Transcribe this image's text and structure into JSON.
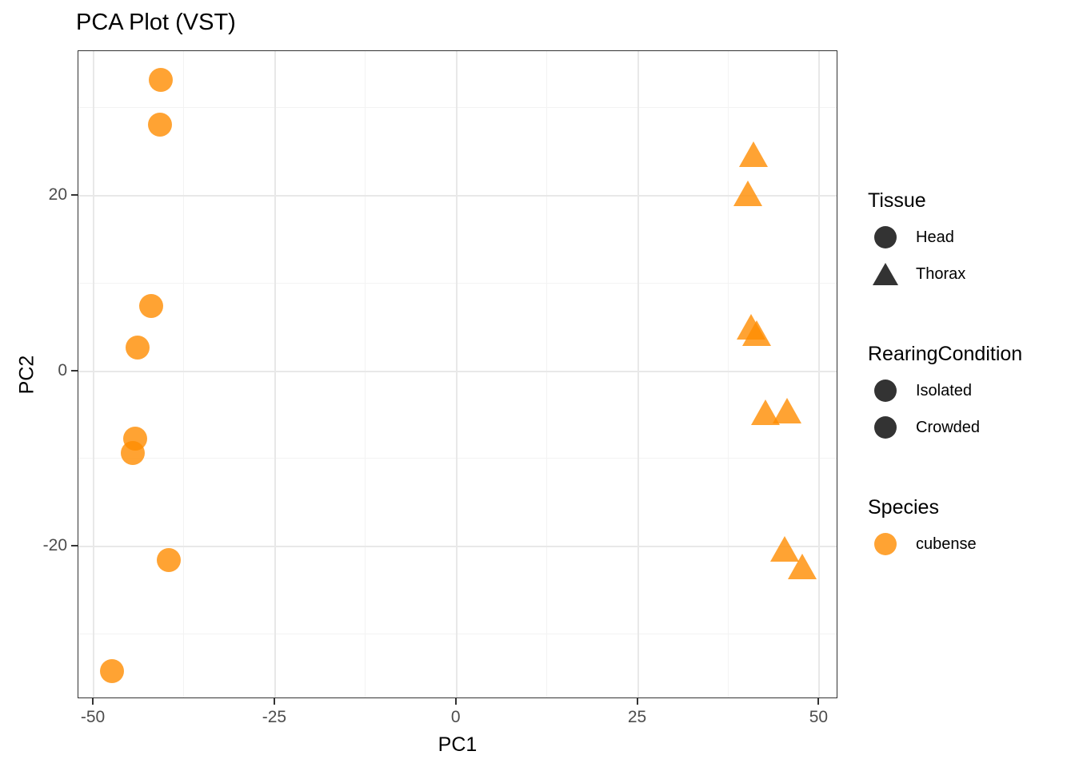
{
  "chart_data": {
    "type": "scatter",
    "title": "PCA Plot (VST)",
    "xlabel": "PC1",
    "ylabel": "PC2",
    "xlim": [
      -52.1,
      52.6
    ],
    "ylim": [
      -37.4,
      36.5
    ],
    "x_ticks": [
      -50,
      -25,
      0,
      25,
      50
    ],
    "y_ticks": [
      -20,
      0,
      20
    ],
    "grid": {
      "major": true,
      "minor": true
    },
    "legend_position": "right",
    "point_style": {
      "color": "#FF8C00",
      "alpha": 0.8
    },
    "series": [
      {
        "name": "Head",
        "marker": "circle",
        "species": "cubense",
        "points": [
          [
            -40.7,
            33.2
          ],
          [
            -40.9,
            28.1
          ],
          [
            -42.1,
            7.4
          ],
          [
            -43.9,
            2.7
          ],
          [
            -44.3,
            -7.7
          ],
          [
            -44.6,
            -9.3
          ],
          [
            -39.6,
            -21.5
          ],
          [
            -47.5,
            -34.2
          ]
        ]
      },
      {
        "name": "Thorax",
        "marker": "triangle",
        "species": "cubense",
        "points": [
          [
            40.9,
            24.7
          ],
          [
            40.1,
            20.3
          ],
          [
            40.6,
            5.1
          ],
          [
            41.4,
            4.3
          ],
          [
            42.6,
            -4.7
          ],
          [
            45.5,
            -4.5
          ],
          [
            45.2,
            -20.3
          ],
          [
            47.6,
            -22.3
          ]
        ]
      }
    ]
  },
  "legend": {
    "groups": [
      {
        "title": "Tissue",
        "items": [
          {
            "label": "Head",
            "marker": "circle",
            "color": "#000000"
          },
          {
            "label": "Thorax",
            "marker": "triangle",
            "color": "#000000"
          }
        ]
      },
      {
        "title": "RearingCondition",
        "items": [
          {
            "label": "Isolated",
            "marker": "circle",
            "color": "#000000"
          },
          {
            "label": "Crowded",
            "marker": "circle",
            "color": "#000000"
          }
        ]
      },
      {
        "title": "Species",
        "items": [
          {
            "label": "cubense",
            "marker": "circle",
            "color": "#FF8C00"
          }
        ]
      }
    ]
  },
  "colors": {
    "point_orange": "#FF8C00",
    "legend_key_dark": "#000000",
    "marker_alpha": "0.8",
    "tick_label": "#4D4D4D",
    "panel_border": "#333333",
    "grid_major": "#E8E8E8",
    "grid_minor": "#F3F3F3"
  }
}
